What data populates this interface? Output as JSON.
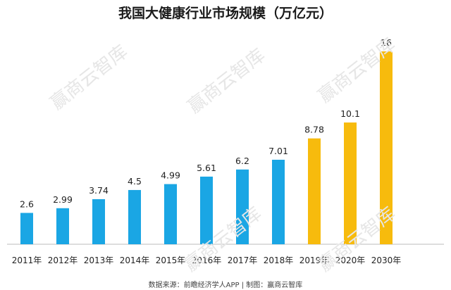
{
  "chart_data": {
    "type": "bar",
    "title": "我国大健康行业市场规模（万亿元）",
    "categories": [
      "2011年",
      "2012年",
      "2013年",
      "2014年",
      "2015年",
      "2016年",
      "2017年",
      "2018年",
      "2019年",
      "2020年",
      "2030年"
    ],
    "values": [
      2.6,
      2.99,
      3.74,
      4.5,
      4.99,
      5.61,
      6.2,
      7.01,
      8.78,
      10.1,
      16
    ],
    "value_labels": [
      "2.6",
      "2.99",
      "3.74",
      "4.5",
      "4.99",
      "5.61",
      "6.2",
      "7.01",
      "8.78",
      "10.1",
      "16"
    ],
    "bar_colors": [
      "#1aa6e4",
      "#1aa6e4",
      "#1aa6e4",
      "#1aa6e4",
      "#1aa6e4",
      "#1aa6e4",
      "#1aa6e4",
      "#1aa6e4",
      "#f7bb0d",
      "#f7bb0d",
      "#f7bb0d"
    ],
    "xlabel": "",
    "ylabel": "",
    "ylim": [
      0,
      16
    ],
    "grid": false,
    "legend": "none"
  },
  "source_note": "数据来源：前瞻经济学人APP | 制图：赢商云智库",
  "watermark_text": "赢商云智库"
}
